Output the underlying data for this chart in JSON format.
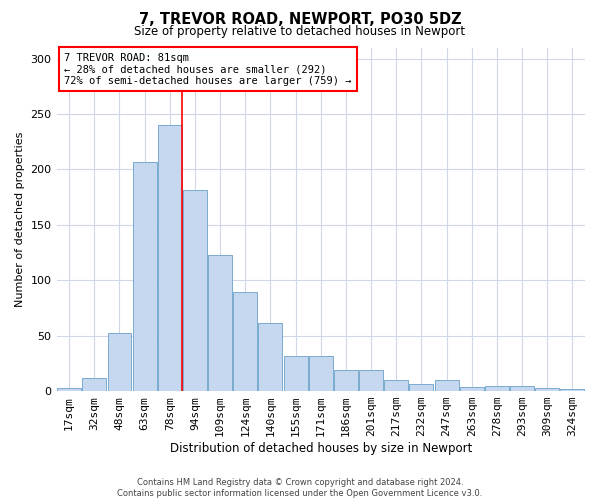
{
  "title1": "7, TREVOR ROAD, NEWPORT, PO30 5DZ",
  "title2": "Size of property relative to detached houses in Newport",
  "xlabel": "Distribution of detached houses by size in Newport",
  "ylabel": "Number of detached properties",
  "categories": [
    "17sqm",
    "32sqm",
    "48sqm",
    "63sqm",
    "78sqm",
    "94sqm",
    "109sqm",
    "124sqm",
    "140sqm",
    "155sqm",
    "171sqm",
    "186sqm",
    "201sqm",
    "217sqm",
    "232sqm",
    "247sqm",
    "263sqm",
    "278sqm",
    "293sqm",
    "309sqm",
    "324sqm"
  ],
  "values": [
    3,
    12,
    52,
    207,
    240,
    181,
    123,
    89,
    61,
    32,
    32,
    19,
    19,
    10,
    6,
    10,
    4,
    5,
    5,
    3,
    2
  ],
  "bar_color": "#c5d8f0",
  "bar_edge_color": "#7aaad0",
  "red_line_x": 4.5,
  "annotation_title": "7 TREVOR ROAD: 81sqm",
  "annotation_line1": "← 28% of detached houses are smaller (292)",
  "annotation_line2": "72% of semi-detached houses are larger (759) →",
  "footer1": "Contains HM Land Registry data © Crown copyright and database right 2024.",
  "footer2": "Contains public sector information licensed under the Open Government Licence v3.0.",
  "ylim": [
    0,
    310
  ],
  "yticks": [
    0,
    50,
    100,
    150,
    200,
    250,
    300
  ],
  "background_color": "#ffffff",
  "grid_color": "#d0d8e8"
}
